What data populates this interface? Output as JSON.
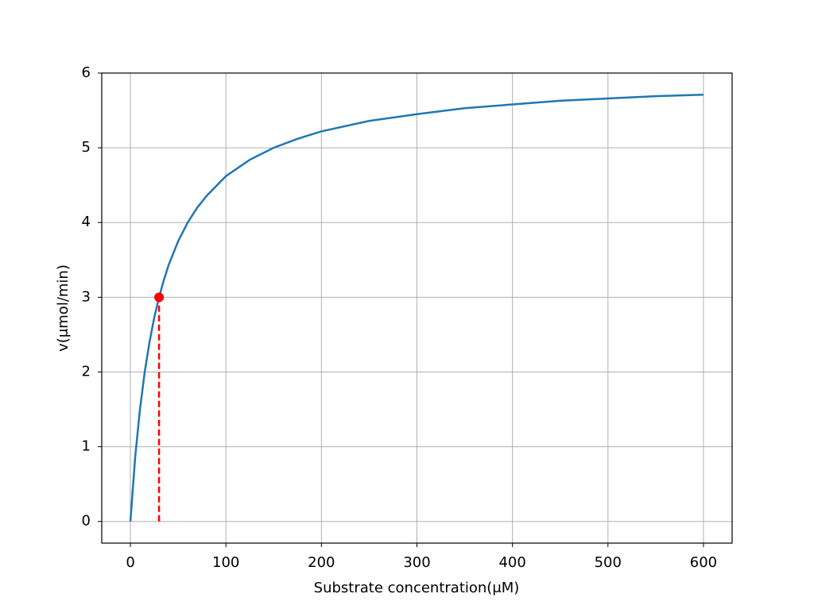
{
  "chart_data": {
    "type": "line",
    "x_label": "Substrate concentration(μM)",
    "y_label": "v(μmol/min)",
    "x": [
      0,
      5,
      10,
      15,
      20,
      25,
      30,
      35,
      40,
      50,
      60,
      70,
      80,
      100,
      125,
      150,
      175,
      200,
      250,
      300,
      350,
      400,
      450,
      500,
      550,
      600
    ],
    "series": [
      {
        "color": "#1f77b4",
        "values": [
          0,
          0.86,
          1.5,
          2,
          2.4,
          2.73,
          3,
          3.23,
          3.43,
          3.75,
          4,
          4.2,
          4.36,
          4.62,
          4.84,
          5,
          5.12,
          5.22,
          5.36,
          5.45,
          5.53,
          5.58,
          5.63,
          5.66,
          5.69,
          5.71
        ]
      }
    ],
    "highlight": {
      "x": 30,
      "y": 3,
      "color": "red"
    },
    "xlim": [
      -30,
      630
    ],
    "ylim": [
      -0.29,
      6
    ],
    "xticks": [
      0,
      100,
      200,
      300,
      400,
      500,
      600
    ],
    "yticks": [
      0,
      1,
      2,
      3,
      4,
      5,
      6
    ],
    "grid": true
  }
}
